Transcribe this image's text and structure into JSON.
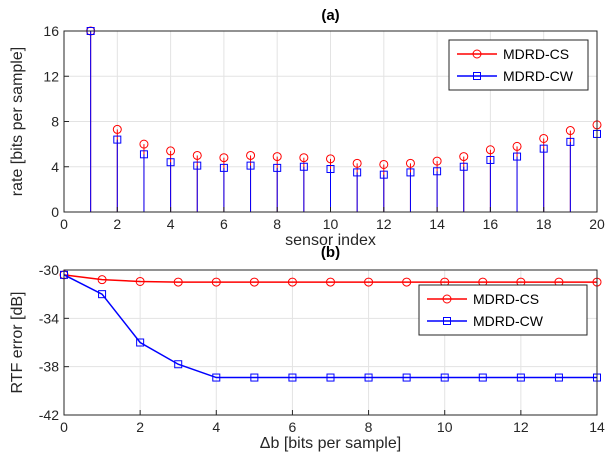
{
  "chart_data": [
    {
      "type": "stem",
      "title": "(a)",
      "xlabel": "sensor index",
      "ylabel": "rate [bits per sample]",
      "xlim": [
        0,
        20
      ],
      "ylim": [
        0,
        16
      ],
      "xticks": [
        0,
        2,
        4,
        6,
        8,
        10,
        12,
        14,
        16,
        18,
        20
      ],
      "yticks": [
        0,
        4,
        8,
        12,
        16
      ],
      "grid": true,
      "legend_position": "top-right",
      "x": [
        1,
        2,
        3,
        4,
        5,
        6,
        7,
        8,
        9,
        10,
        11,
        12,
        13,
        14,
        15,
        16,
        17,
        18,
        19,
        20
      ],
      "series": [
        {
          "name": "MDRD-CS",
          "color": "#ff0000",
          "marker": "circle",
          "values": [
            16,
            7.3,
            6.0,
            5.4,
            5.0,
            4.8,
            5.0,
            4.9,
            4.8,
            4.7,
            4.3,
            4.2,
            4.3,
            4.5,
            4.9,
            5.5,
            5.8,
            6.5,
            7.2,
            7.7
          ]
        },
        {
          "name": "MDRD-CW",
          "color": "#0000ff",
          "marker": "square",
          "values": [
            16,
            6.4,
            5.1,
            4.4,
            4.1,
            3.9,
            4.1,
            3.9,
            4.0,
            3.8,
            3.5,
            3.3,
            3.5,
            3.6,
            4.0,
            4.6,
            4.9,
            5.6,
            6.2,
            6.9
          ]
        }
      ]
    },
    {
      "type": "line",
      "title": "(b)",
      "xlabel": "Δb [bits per sample]",
      "ylabel": "RTF error [dB]",
      "xlim": [
        0,
        14
      ],
      "ylim": [
        -42,
        -30
      ],
      "xticks": [
        0,
        2,
        4,
        6,
        8,
        10,
        12,
        14
      ],
      "yticks": [
        -30,
        -34,
        -38,
        -42
      ],
      "grid": true,
      "legend_position": "top-right",
      "x": [
        0,
        1,
        2,
        3,
        4,
        5,
        6,
        7,
        8,
        9,
        10,
        11,
        12,
        13,
        14
      ],
      "series": [
        {
          "name": "MDRD-CS",
          "color": "#ff0000",
          "marker": "circle",
          "values": [
            -30.4,
            -30.8,
            -30.95,
            -31.0,
            -31.0,
            -31.0,
            -31.0,
            -31.0,
            -31.0,
            -31.0,
            -31.0,
            -31.0,
            -31.0,
            -31.0,
            -31.0
          ]
        },
        {
          "name": "MDRD-CW",
          "color": "#0000ff",
          "marker": "square",
          "values": [
            -30.4,
            -32.0,
            -36.0,
            -37.8,
            -38.9,
            -38.9,
            -38.9,
            -38.9,
            -38.9,
            -38.9,
            -38.9,
            -38.9,
            -38.9,
            -38.9,
            -38.9
          ]
        }
      ]
    }
  ]
}
